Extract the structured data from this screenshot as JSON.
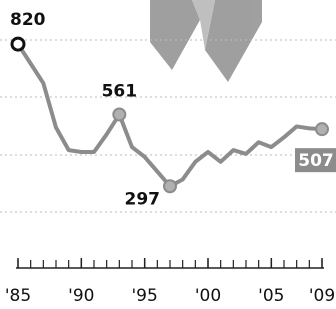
{
  "chart_data": {
    "type": "line",
    "x": [
      1985,
      1986,
      1987,
      1988,
      1989,
      1990,
      1991,
      1992,
      1993,
      1994,
      1995,
      1996,
      1997,
      1998,
      1999,
      2000,
      2001,
      2002,
      2003,
      2004,
      2005,
      2006,
      2007,
      2008,
      2009
    ],
    "values": [
      820,
      748,
      676,
      513,
      430,
      423,
      423,
      488,
      561,
      441,
      405,
      351,
      297,
      322,
      387,
      423,
      387,
      430,
      416,
      459,
      441,
      477,
      517,
      510,
      507
    ],
    "value_labels": [
      "820",
      null,
      null,
      null,
      null,
      null,
      null,
      null,
      "561",
      null,
      null,
      null,
      "297",
      null,
      null,
      null,
      null,
      null,
      null,
      null,
      null,
      null,
      null,
      null,
      "507"
    ],
    "color": "#8c8c8c",
    "xlim": [
      1985,
      2009
    ],
    "xticks": [
      {
        "value": 1985,
        "label": "'85"
      },
      {
        "value": 1990,
        "label": "'90"
      },
      {
        "value": 1995,
        "label": "'95"
      },
      {
        "value": 2000,
        "label": "'00"
      },
      {
        "value": 2005,
        "label": "'05"
      },
      {
        "value": 2009,
        "label": "'09"
      }
    ],
    "ylim": [
      0,
      960
    ]
  }
}
